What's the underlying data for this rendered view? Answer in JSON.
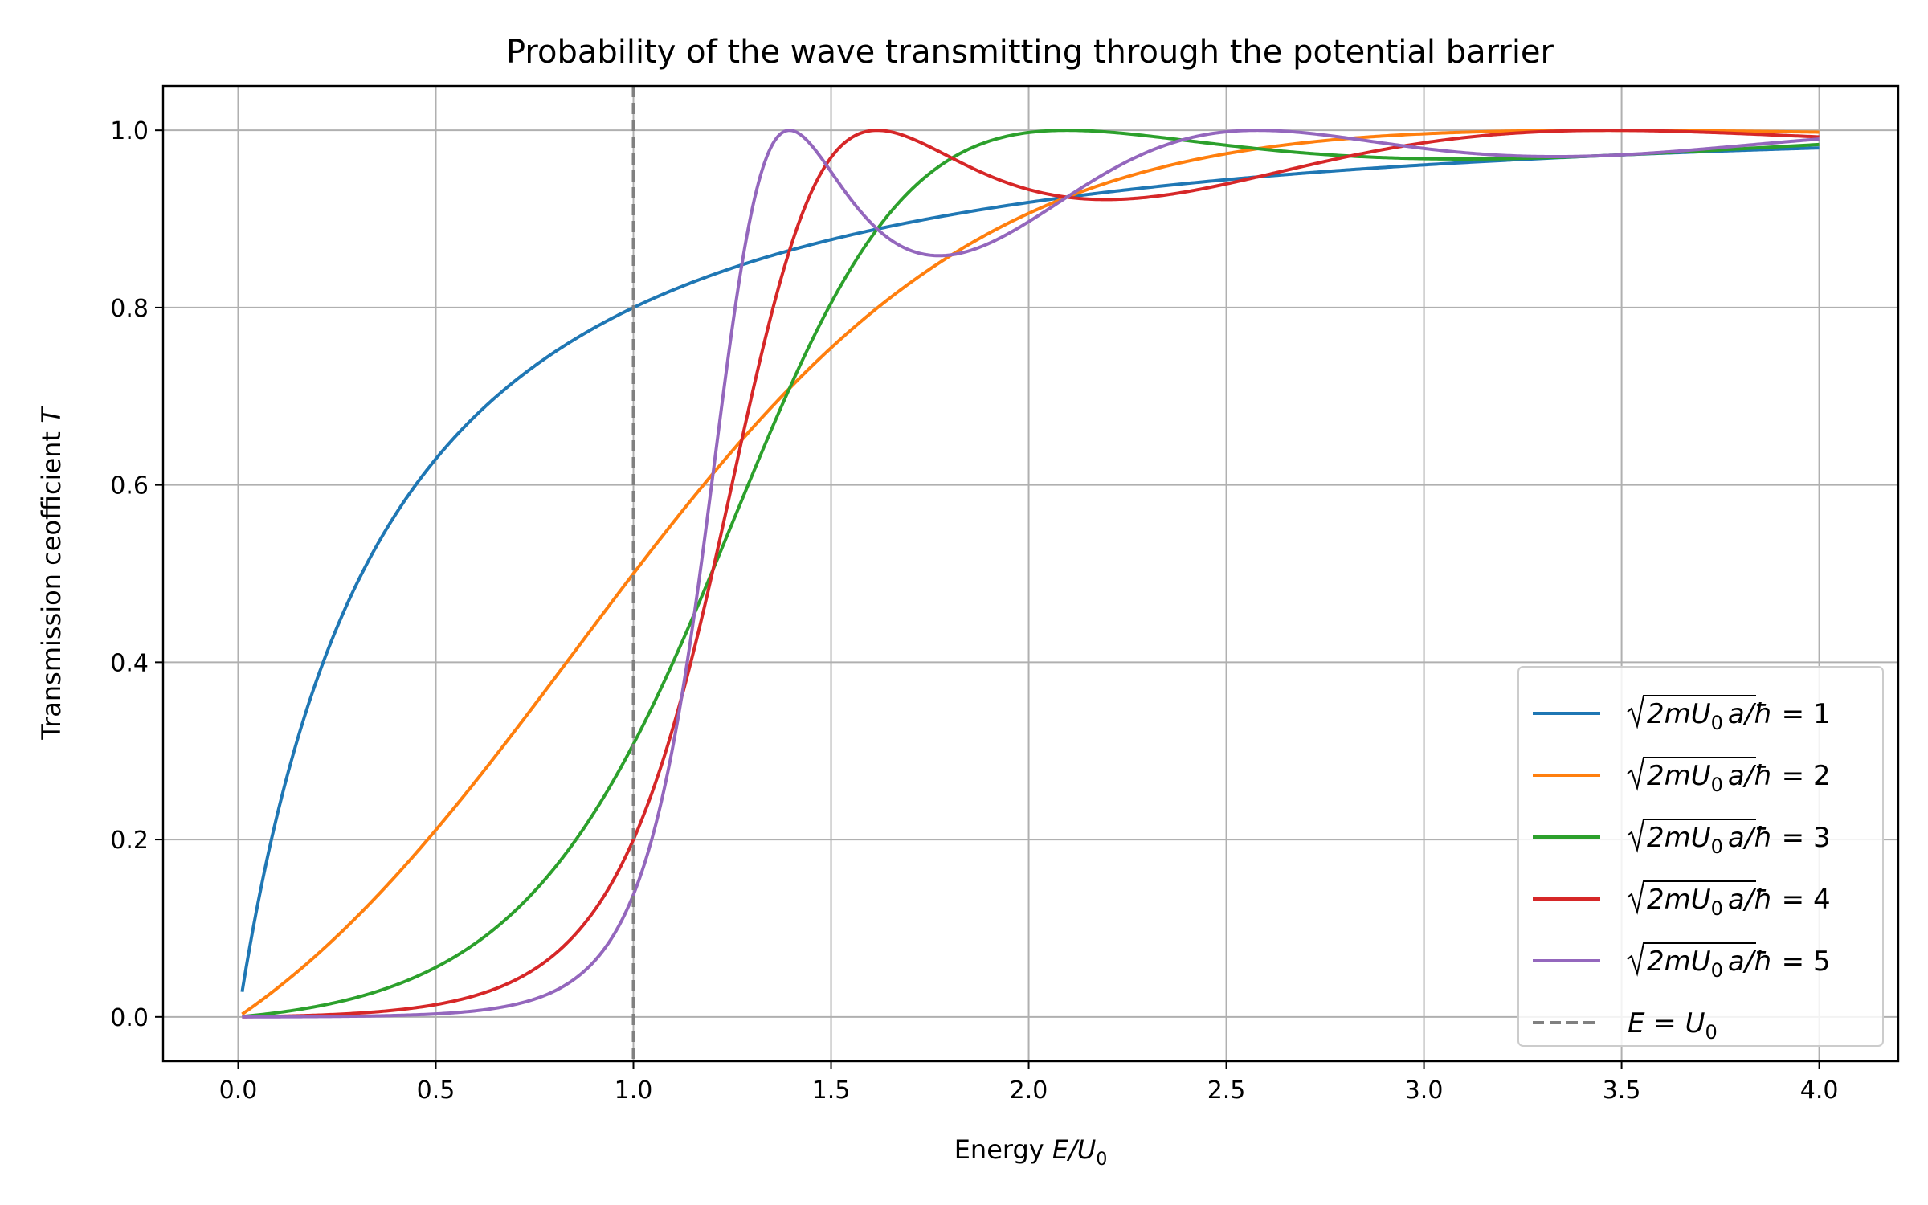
{
  "chart_data": {
    "type": "line",
    "title": "Probability of the wave transmitting through the potential barrier",
    "xlabel_text": "Energy ",
    "xlabel_math": "E/U",
    "xlabel_sub": "0",
    "ylabel_text": "Transmission ceofficient ",
    "ylabel_math": "T",
    "xlim": [
      -0.19,
      4.2
    ],
    "ylim": [
      -0.05,
      1.05
    ],
    "xticks": [
      "0.0",
      "0.5",
      "1.0",
      "1.5",
      "2.0",
      "2.5",
      "3.0",
      "3.5",
      "4.0"
    ],
    "yticks": [
      "0.0",
      "0.2",
      "0.4",
      "0.6",
      "0.8",
      "1.0"
    ],
    "grid": true,
    "legend_position": "lower-right",
    "legend_prefix": "2mU",
    "legend_prefix_sub": "0",
    "legend_mid": "a/ħ = ",
    "series": [
      {
        "name": "1",
        "param": 1,
        "color": "#1f77b4"
      },
      {
        "name": "2",
        "param": 2,
        "color": "#ff7f0e"
      },
      {
        "name": "3",
        "param": 3,
        "color": "#2ca02c"
      },
      {
        "name": "4",
        "param": 4,
        "color": "#d62728"
      },
      {
        "name": "5",
        "param": 5,
        "color": "#9467bd"
      }
    ],
    "energy_range": [
      0.01,
      4.0
    ],
    "vline": {
      "x": 1.0,
      "label_math": "E = U",
      "label_sub": "0",
      "color": "#808080"
    }
  }
}
